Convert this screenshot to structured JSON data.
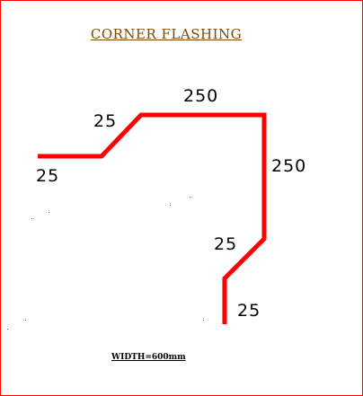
{
  "diagram": {
    "title": "CORNER  FLASHING",
    "title_color": "#7a4a00",
    "profile_color": "#ff0000",
    "border_color": "#ff0000",
    "dimensions": {
      "left_flat": "25",
      "left_slope": "25",
      "top": "250",
      "right": "250",
      "lower_slope": "25",
      "bottom_leg": "25"
    },
    "width_note": "WIDTH=600mm"
  }
}
